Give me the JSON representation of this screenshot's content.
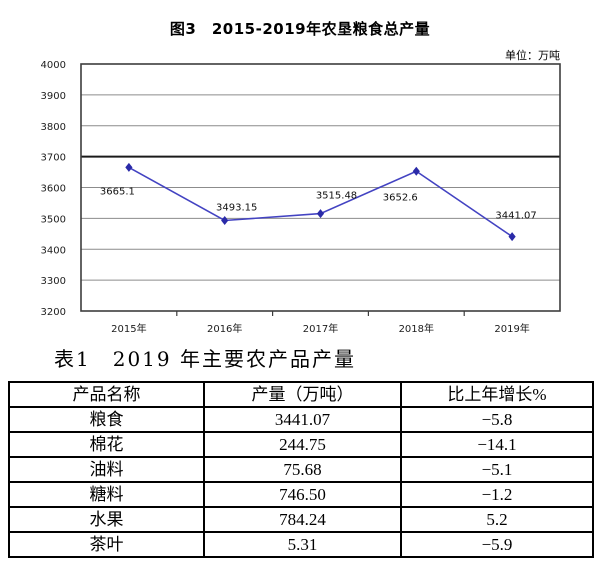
{
  "document": {
    "figure_caption": "图3　2015-2019年农垦粮食总产量",
    "unit_label": "单位：万吨",
    "table_caption": "表1　2019 年主要农产品产量"
  },
  "chart_data": {
    "type": "line",
    "title": "图3 2015-2019年农垦粮食总产量",
    "unit": "万吨",
    "categories": [
      "2015年",
      "2016年",
      "2017年",
      "2018年",
      "2019年"
    ],
    "series": [
      {
        "name": "农垦粮食总产量",
        "values": [
          3665.1,
          3493.15,
          3515.48,
          3652.6,
          3441.07
        ]
      }
    ],
    "point_labels": [
      "3665.1",
      "3493.15",
      "3515.48",
      "3652.6",
      "3441.07"
    ],
    "xlabel": "",
    "ylabel": "",
    "ylim": [
      3200,
      4000
    ],
    "yticks": [
      3200,
      3300,
      3400,
      3500,
      3600,
      3700,
      3800,
      3900,
      4000
    ],
    "grid": true,
    "legend": "none",
    "marker": "diamond",
    "colors": {
      "line": "#4343c2",
      "marker": "#2a2aa8",
      "grid": "#8c8c8c",
      "grid_emphasis": "#1a1a1a",
      "frame": "#3d3d3d"
    }
  },
  "table": {
    "headers": [
      "产品名称",
      "产量（万吨）",
      "比上年增长%"
    ],
    "rows": [
      [
        "粮食",
        "3441.07",
        "−5.8"
      ],
      [
        "棉花",
        "244.75",
        "−14.1"
      ],
      [
        "油料",
        "75.68",
        "−5.1"
      ],
      [
        "糖料",
        "746.50",
        "−1.2"
      ],
      [
        "水果",
        "784.24",
        "5.2"
      ],
      [
        "茶叶",
        "5.31",
        "−5.9"
      ]
    ]
  }
}
